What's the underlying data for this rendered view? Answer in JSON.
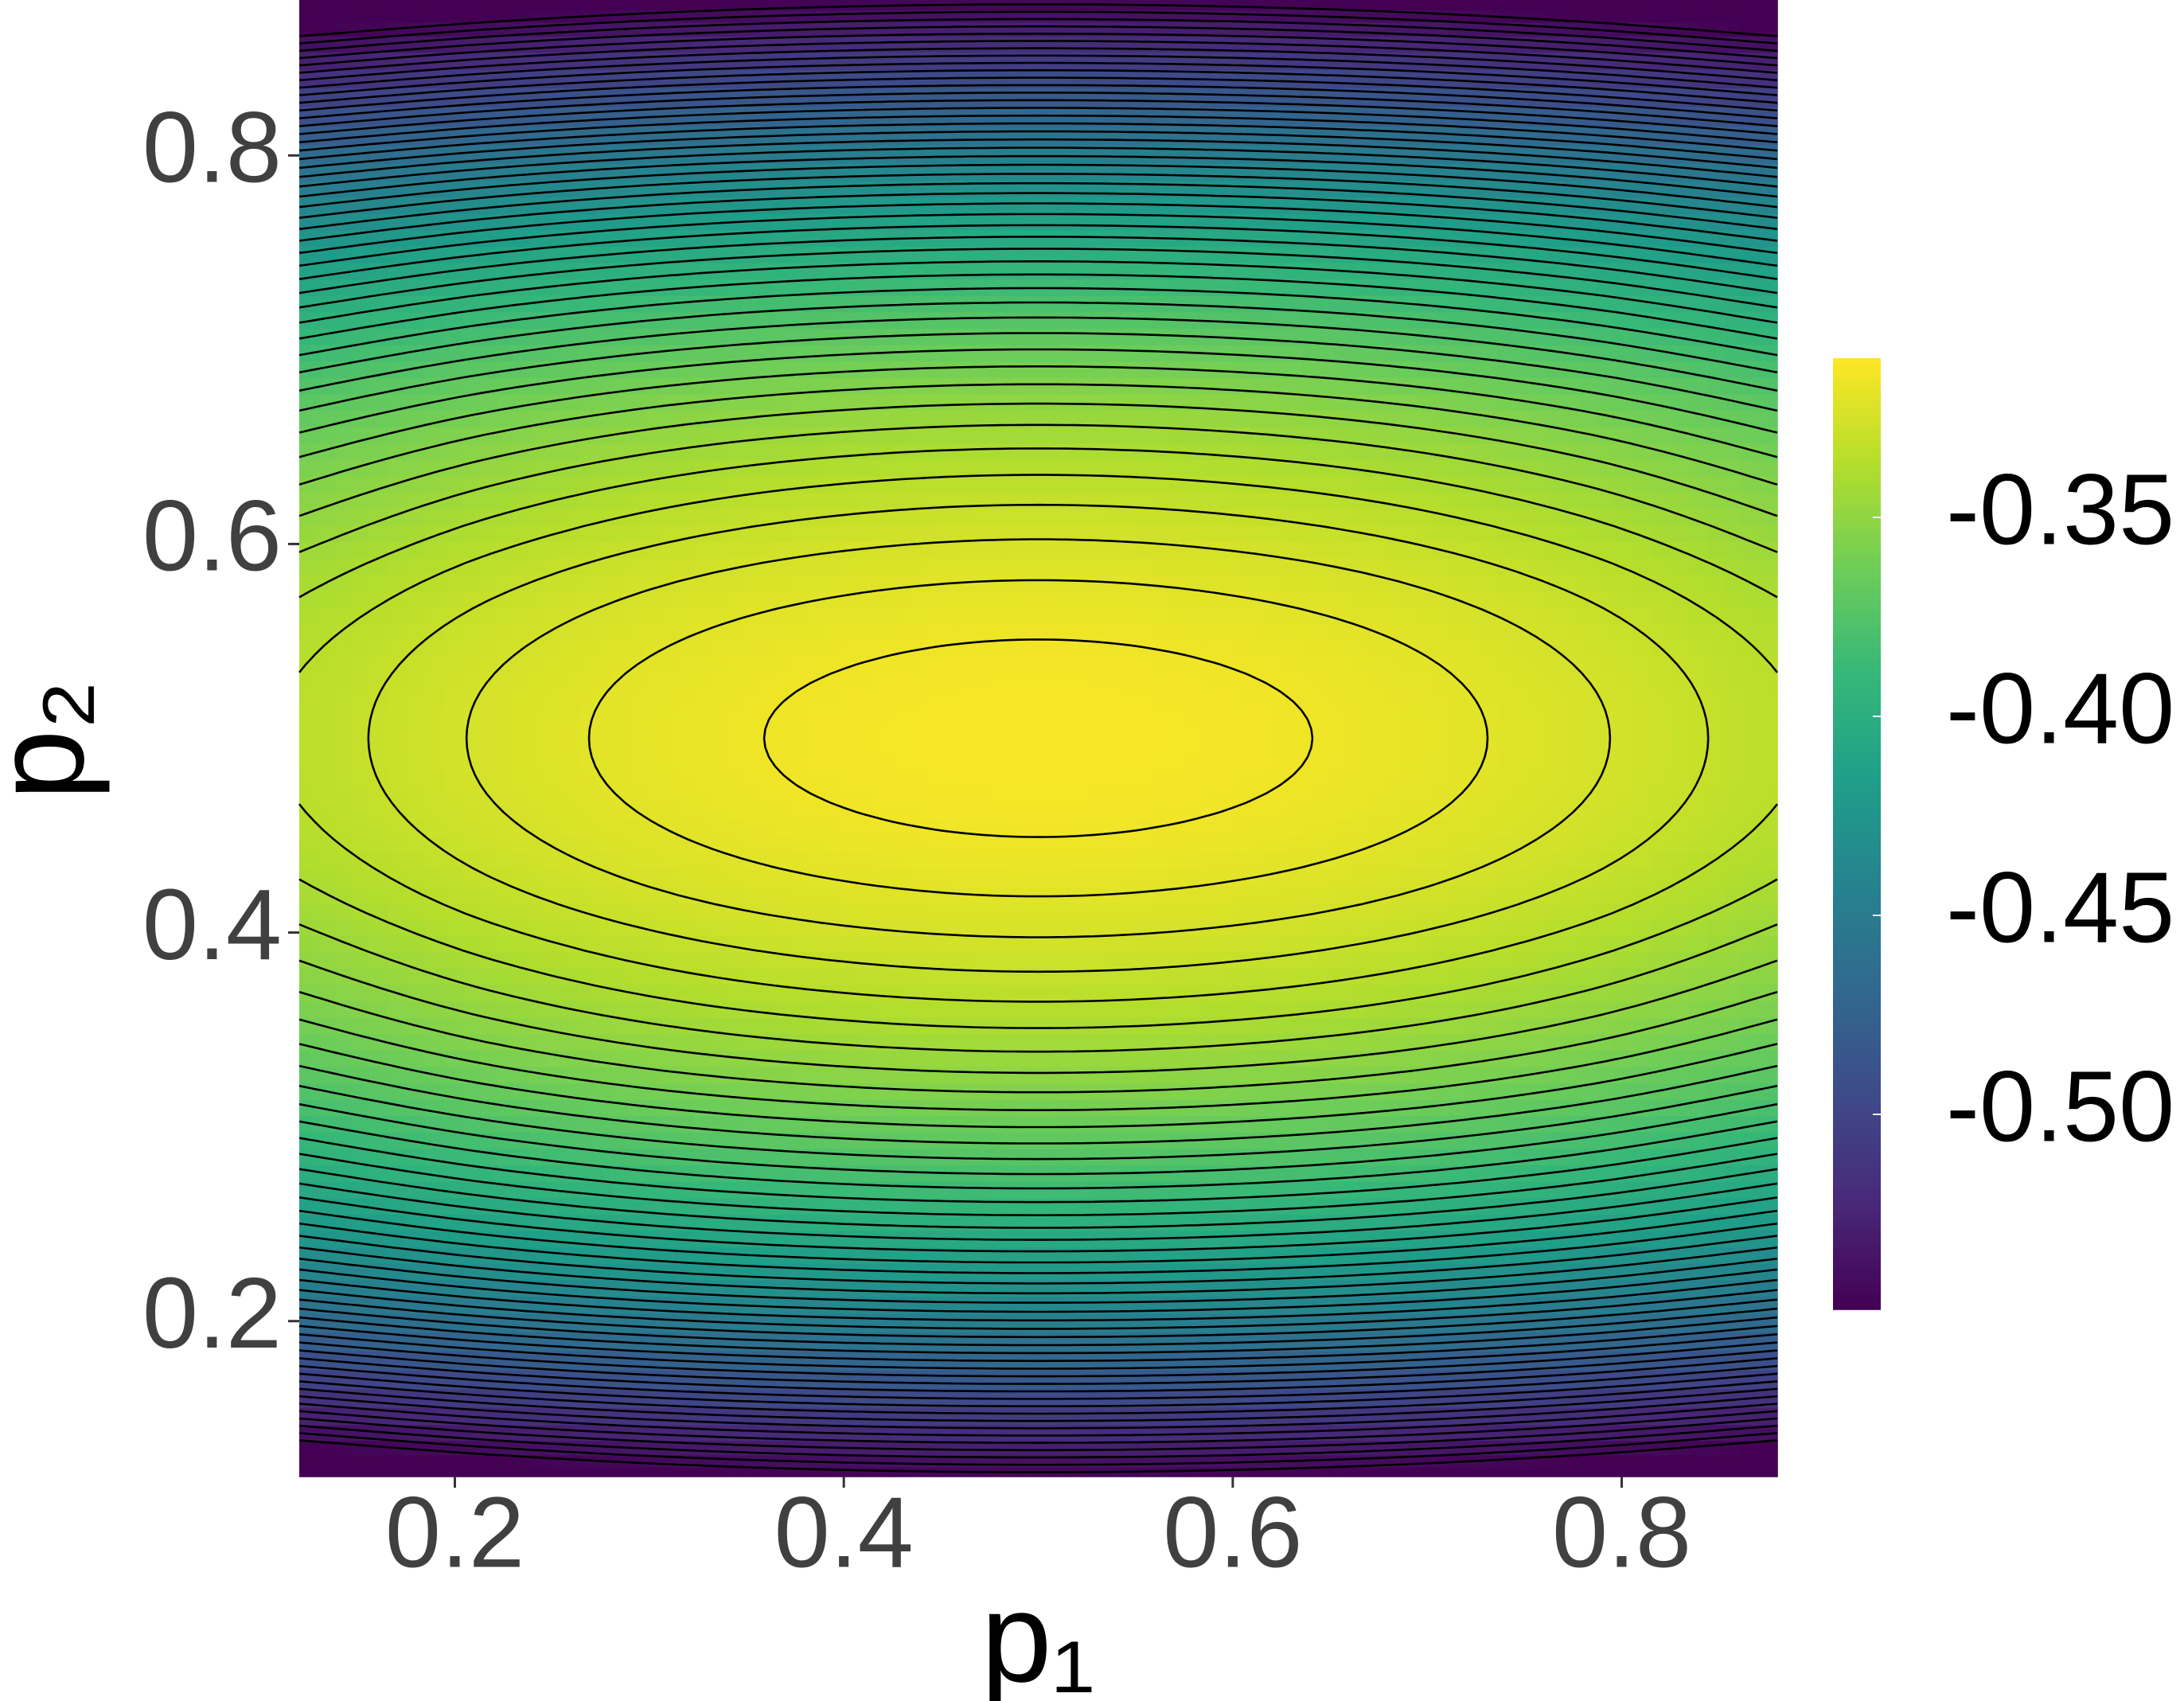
{
  "chart_data": {
    "type": "contour",
    "xlabel": "p₁",
    "ylabel": "p₂",
    "x": [
      0.12,
      0.215,
      0.31,
      0.405,
      0.5,
      0.595,
      0.69,
      0.785,
      0.88
    ],
    "y": [
      0.12,
      0.215,
      0.31,
      0.405,
      0.5,
      0.595,
      0.69,
      0.785,
      0.88
    ],
    "z": [
      [
        -0.5695,
        -0.56,
        -0.5532,
        -0.5492,
        -0.5478,
        -0.5492,
        -0.5532,
        -0.56,
        -0.5695
      ],
      [
        -0.451,
        -0.4415,
        -0.4347,
        -0.4307,
        -0.4293,
        -0.4307,
        -0.4347,
        -0.4415,
        -0.451
      ],
      [
        -0.3809,
        -0.3714,
        -0.3646,
        -0.3606,
        -0.3592,
        -0.3606,
        -0.3646,
        -0.3714,
        -0.3809
      ],
      [
        -0.3448,
        -0.3353,
        -0.3285,
        -0.3245,
        -0.3231,
        -0.3245,
        -0.3285,
        -0.3353,
        -0.3448
      ],
      [
        -0.3337,
        -0.3242,
        -0.3174,
        -0.3134,
        -0.312,
        -0.3134,
        -0.3174,
        -0.3242,
        -0.3337
      ],
      [
        -0.3448,
        -0.3353,
        -0.3285,
        -0.3245,
        -0.3231,
        -0.3245,
        -0.3285,
        -0.3353,
        -0.3448
      ],
      [
        -0.3809,
        -0.3714,
        -0.3646,
        -0.3606,
        -0.3592,
        -0.3606,
        -0.3646,
        -0.3714,
        -0.3809
      ],
      [
        -0.451,
        -0.4415,
        -0.4347,
        -0.4307,
        -0.4293,
        -0.4307,
        -0.4347,
        -0.4415,
        -0.451
      ],
      [
        -0.5695,
        -0.56,
        -0.5532,
        -0.5492,
        -0.5478,
        -0.5492,
        -0.5532,
        -0.56,
        -0.5695
      ]
    ],
    "levels": [
      -0.545,
      -0.54,
      -0.535,
      -0.53,
      -0.525,
      -0.52,
      -0.515,
      -0.51,
      -0.505,
      -0.5,
      -0.495,
      -0.49,
      -0.485,
      -0.48,
      -0.475,
      -0.47,
      -0.465,
      -0.46,
      -0.455,
      -0.45,
      -0.445,
      -0.44,
      -0.435,
      -0.43,
      -0.425,
      -0.42,
      -0.415,
      -0.41,
      -0.405,
      -0.4,
      -0.395,
      -0.39,
      -0.385,
      -0.38,
      -0.375,
      -0.37,
      -0.365,
      -0.36,
      -0.355,
      -0.35,
      -0.345,
      -0.34,
      -0.335,
      -0.33,
      -0.325,
      -0.32,
      -0.315
    ],
    "xlim": [
      0.12,
      0.88
    ],
    "ylim": [
      0.12,
      0.88
    ],
    "xticks": [
      0.2,
      0.4,
      0.6,
      0.8
    ],
    "yticks": [
      0.2,
      0.4,
      0.6,
      0.8
    ],
    "colormap": "viridis",
    "clim": [
      -0.549,
      -0.31
    ],
    "cticks": [
      -0.35,
      {
        "value": -0.4,
        "label": "-0.40"
      },
      -0.45,
      {
        "value": -0.5,
        "label": "-0.50"
      }
    ],
    "line_color": "#000000"
  }
}
